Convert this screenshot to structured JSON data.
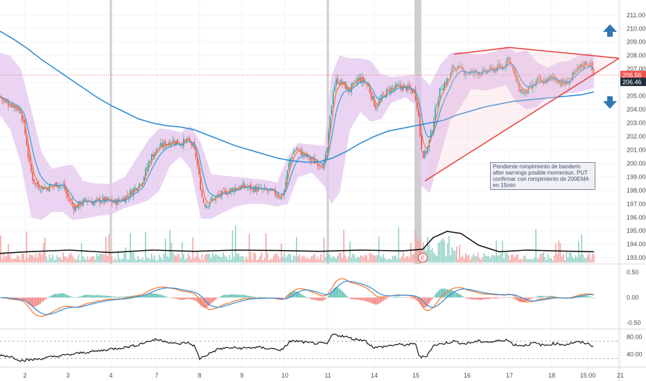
{
  "chart_data": [
    {
      "type": "candlestick",
      "panel": "price",
      "y_ticks": [
        "211.00",
        "210.00",
        "209.00",
        "208.00",
        "207.00",
        "206.00",
        "205.00",
        "204.00",
        "203.00",
        "202.00",
        "201.00",
        "200.00",
        "199.00",
        "198.00",
        "197.00",
        "196.00",
        "195.00",
        "194.00",
        "193.00"
      ],
      "ylim": [
        192.7,
        211.4
      ],
      "x_ticks": [
        "2",
        "3",
        "4",
        "7",
        "8",
        "9",
        "10",
        "11",
        "14",
        "15",
        "16",
        "17",
        "18",
        "15:00",
        "21"
      ],
      "current_price": "206.56",
      "current_price_2": "206.46",
      "close_path": [
        [
          0,
          205.0
        ],
        [
          5,
          204.6
        ],
        [
          10,
          204.5
        ],
        [
          20,
          204.3
        ],
        [
          30,
          203.9
        ],
        [
          37,
          202.0
        ],
        [
          42,
          200.0
        ],
        [
          48,
          198.7
        ],
        [
          55,
          198.3
        ],
        [
          65,
          198.2
        ],
        [
          75,
          198.3
        ],
        [
          85,
          198.5
        ],
        [
          92,
          198.3
        ],
        [
          97,
          197.5
        ],
        [
          103,
          197.0
        ],
        [
          108,
          196.7
        ],
        [
          115,
          197.0
        ],
        [
          125,
          197.3
        ],
        [
          135,
          197.1
        ],
        [
          145,
          197.3
        ],
        [
          155,
          197.2
        ],
        [
          165,
          197.1
        ],
        [
          175,
          197.3
        ],
        [
          183,
          197.6
        ],
        [
          190,
          197.9
        ],
        [
          197,
          198.3
        ],
        [
          205,
          198.7
        ],
        [
          210,
          199.4
        ],
        [
          216,
          200.3
        ],
        [
          222,
          200.8
        ],
        [
          230,
          201.2
        ],
        [
          240,
          201.5
        ],
        [
          250,
          201.7
        ],
        [
          258,
          201.5
        ],
        [
          265,
          201.6
        ],
        [
          270,
          201.7
        ],
        [
          277,
          201.4
        ],
        [
          283,
          200.5
        ],
        [
          287,
          199.0
        ],
        [
          292,
          197.3
        ],
        [
          297,
          196.9
        ],
        [
          303,
          197.2
        ],
        [
          312,
          197.5
        ],
        [
          322,
          197.8
        ],
        [
          332,
          198.0
        ],
        [
          340,
          198.2
        ],
        [
          350,
          198.3
        ],
        [
          360,
          198.2
        ],
        [
          370,
          198.1
        ],
        [
          380,
          198.0
        ],
        [
          390,
          197.9
        ],
        [
          400,
          197.7
        ],
        [
          406,
          197.5
        ],
        [
          410,
          198.0
        ],
        [
          415,
          199.5
        ],
        [
          420,
          200.6
        ],
        [
          427,
          201.1
        ],
        [
          432,
          200.9
        ],
        [
          440,
          200.6
        ],
        [
          450,
          200.2
        ],
        [
          460,
          200.0
        ],
        [
          468,
          199.9
        ],
        [
          473,
          201.5
        ],
        [
          477,
          203.8
        ],
        [
          481,
          205.6
        ],
        [
          486,
          206.2
        ],
        [
          491,
          206.0
        ],
        [
          497,
          205.8
        ],
        [
          503,
          205.4
        ],
        [
          510,
          205.8
        ],
        [
          517,
          206.3
        ],
        [
          525,
          206.1
        ],
        [
          532,
          205.6
        ],
        [
          537,
          204.8
        ],
        [
          542,
          204.2
        ],
        [
          548,
          204.6
        ],
        [
          555,
          205.2
        ],
        [
          562,
          205.5
        ],
        [
          570,
          205.6
        ],
        [
          578,
          205.7
        ],
        [
          586,
          205.6
        ],
        [
          593,
          205.4
        ],
        [
          598,
          205.3
        ],
        [
          603,
          204.0
        ],
        [
          607,
          201.5
        ],
        [
          611,
          200.5
        ],
        [
          616,
          201.0
        ],
        [
          621,
          202.0
        ],
        [
          627,
          203.6
        ],
        [
          632,
          204.9
        ],
        [
          637,
          205.7
        ],
        [
          643,
          206.0
        ],
        [
          648,
          206.3
        ],
        [
          653,
          207.1
        ],
        [
          658,
          207.2
        ],
        [
          665,
          206.9
        ],
        [
          672,
          206.8
        ],
        [
          680,
          206.7
        ],
        [
          688,
          206.8
        ],
        [
          696,
          206.7
        ],
        [
          705,
          206.9
        ],
        [
          712,
          207.0
        ],
        [
          720,
          207.1
        ],
        [
          727,
          207.2
        ],
        [
          732,
          207.9
        ],
        [
          737,
          207.5
        ],
        [
          742,
          206.5
        ],
        [
          748,
          205.6
        ],
        [
          755,
          205.2
        ],
        [
          762,
          205.4
        ],
        [
          770,
          205.8
        ],
        [
          776,
          206.2
        ],
        [
          782,
          206.0
        ],
        [
          790,
          206.2
        ],
        [
          796,
          206.4
        ],
        [
          802,
          206.3
        ],
        [
          808,
          206.0
        ],
        [
          815,
          205.9
        ],
        [
          822,
          206.2
        ],
        [
          828,
          206.6
        ],
        [
          834,
          207.0
        ],
        [
          840,
          207.3
        ],
        [
          846,
          207.5
        ],
        [
          852,
          207.3
        ],
        [
          857,
          206.56
        ]
      ],
      "ema200": [
        [
          0,
          209.8
        ],
        [
          20,
          209.2
        ],
        [
          40,
          208.5
        ],
        [
          60,
          207.7
        ],
        [
          80,
          207.0
        ],
        [
          100,
          206.3
        ],
        [
          120,
          205.6
        ],
        [
          140,
          204.9
        ],
        [
          160,
          204.3
        ],
        [
          180,
          203.8
        ],
        [
          200,
          203.3
        ],
        [
          220,
          203.0
        ],
        [
          240,
          202.8
        ],
        [
          260,
          202.7
        ],
        [
          280,
          202.5
        ],
        [
          300,
          202.1
        ],
        [
          320,
          201.7
        ],
        [
          340,
          201.3
        ],
        [
          360,
          201.0
        ],
        [
          380,
          200.7
        ],
        [
          400,
          200.4
        ],
        [
          420,
          200.2
        ],
        [
          440,
          200.1
        ],
        [
          460,
          200.1
        ],
        [
          480,
          200.4
        ],
        [
          500,
          200.9
        ],
        [
          520,
          201.5
        ],
        [
          540,
          202.0
        ],
        [
          560,
          202.4
        ],
        [
          580,
          202.6
        ],
        [
          600,
          202.8
        ],
        [
          620,
          203.0
        ],
        [
          640,
          203.2
        ],
        [
          660,
          203.6
        ],
        [
          680,
          203.9
        ],
        [
          700,
          204.2
        ],
        [
          720,
          204.4
        ],
        [
          740,
          204.6
        ],
        [
          760,
          204.7
        ],
        [
          780,
          204.8
        ],
        [
          800,
          204.9
        ],
        [
          820,
          205.0
        ],
        [
          840,
          205.1
        ],
        [
          857,
          205.3
        ]
      ],
      "bands": [
        [
          0,
          208.2,
          203.6
        ],
        [
          15,
          208.0,
          202.5
        ],
        [
          30,
          207.0,
          200.0
        ],
        [
          45,
          204.0,
          196.0
        ],
        [
          60,
          200.8,
          195.8
        ],
        [
          75,
          199.6,
          196.4
        ],
        [
          90,
          199.8,
          196.4
        ],
        [
          105,
          199.9,
          195.8
        ],
        [
          120,
          198.7,
          195.9
        ],
        [
          140,
          198.5,
          196.1
        ],
        [
          160,
          198.5,
          196.2
        ],
        [
          180,
          199.0,
          196.7
        ],
        [
          200,
          200.6,
          197.0
        ],
        [
          215,
          201.8,
          197.3
        ],
        [
          230,
          202.6,
          198.0
        ],
        [
          245,
          202.5,
          199.8
        ],
        [
          260,
          202.3,
          200.5
        ],
        [
          275,
          202.8,
          199.6
        ],
        [
          290,
          201.5,
          195.9
        ],
        [
          305,
          199.2,
          195.9
        ],
        [
          320,
          199.1,
          196.3
        ],
        [
          340,
          199.0,
          196.8
        ],
        [
          360,
          198.9,
          197.0
        ],
        [
          380,
          198.8,
          197.0
        ],
        [
          400,
          198.6,
          196.8
        ],
        [
          415,
          200.5,
          197.0
        ],
        [
          430,
          201.5,
          199.0
        ],
        [
          450,
          201.4,
          199.3
        ],
        [
          468,
          201.3,
          198.3
        ],
        [
          478,
          206.5,
          197.0
        ],
        [
          490,
          208.0,
          197.8
        ],
        [
          505,
          207.8,
          202.5
        ],
        [
          520,
          207.8,
          203.8
        ],
        [
          535,
          207.6,
          203.1
        ],
        [
          550,
          206.6,
          203.3
        ],
        [
          565,
          206.4,
          204.5
        ],
        [
          585,
          206.5,
          204.9
        ],
        [
          598,
          206.6,
          204.4
        ],
        [
          607,
          206.5,
          198.4
        ],
        [
          620,
          205.8,
          197.8
        ],
        [
          635,
          207.3,
          200.5
        ],
        [
          650,
          208.2,
          203.2
        ],
        [
          665,
          208.3,
          204.2
        ],
        [
          680,
          208.1,
          205.5
        ],
        [
          700,
          208.1,
          205.4
        ],
        [
          715,
          208.3,
          205.6
        ],
        [
          730,
          208.7,
          205.8
        ],
        [
          745,
          208.2,
          204.5
        ],
        [
          760,
          208.4,
          204.0
        ],
        [
          775,
          207.5,
          204.2
        ],
        [
          790,
          207.1,
          204.9
        ],
        [
          805,
          207.5,
          205.0
        ],
        [
          820,
          207.6,
          205.2
        ],
        [
          835,
          208.0,
          205.3
        ],
        [
          850,
          208.2,
          205.5
        ],
        [
          857,
          208.0,
          205.6
        ]
      ],
      "triangle": {
        "apex": [
          893,
          207.8
        ],
        "upper_start": [
          655,
          208.1
        ],
        "upper_peak": [
          735,
          208.6
        ],
        "lower_start": [
          613,
          198.7
        ]
      },
      "earnings_marker": "E",
      "annotation": "Pendiente rompimiento de banderin after earnings posible momentun. PUT confirmar con rompimiento de 200EMA en 15min",
      "highlight_columns": [
        160,
        473
      ],
      "shaded_column": 603
    },
    {
      "type": "bar",
      "panel": "volume",
      "series": "volume",
      "ma": [
        [
          0,
          0.22
        ],
        [
          40,
          0.26
        ],
        [
          100,
          0.3
        ],
        [
          160,
          0.24
        ],
        [
          220,
          0.3
        ],
        [
          280,
          0.27
        ],
        [
          340,
          0.3
        ],
        [
          400,
          0.29
        ],
        [
          460,
          0.27
        ],
        [
          520,
          0.3
        ],
        [
          580,
          0.28
        ],
        [
          610,
          0.32
        ],
        [
          625,
          0.6
        ],
        [
          645,
          0.75
        ],
        [
          665,
          0.7
        ],
        [
          690,
          0.42
        ],
        [
          720,
          0.26
        ],
        [
          760,
          0.3
        ],
        [
          800,
          0.28
        ],
        [
          857,
          0.26
        ]
      ]
    },
    {
      "type": "line",
      "panel": "macd",
      "y_ticks": [
        "0.50",
        "0.00",
        "-0.50"
      ],
      "ylim": [
        -0.58,
        0.58
      ]
    },
    {
      "type": "line",
      "panel": "rsi",
      "y_ticks": [
        "80.00",
        "40.00"
      ],
      "ylim": [
        15,
        95
      ],
      "levels": [
        70,
        30
      ],
      "rsi": [
        [
          0,
          38
        ],
        [
          15,
          35
        ],
        [
          30,
          26
        ],
        [
          45,
          27
        ],
        [
          60,
          30
        ],
        [
          75,
          34
        ],
        [
          90,
          37
        ],
        [
          105,
          40
        ],
        [
          120,
          44
        ],
        [
          140,
          47
        ],
        [
          160,
          52
        ],
        [
          180,
          56
        ],
        [
          195,
          60
        ],
        [
          210,
          68
        ],
        [
          225,
          74
        ],
        [
          240,
          70
        ],
        [
          255,
          63
        ],
        [
          270,
          67
        ],
        [
          280,
          60
        ],
        [
          288,
          30
        ],
        [
          300,
          40
        ],
        [
          315,
          52
        ],
        [
          330,
          55
        ],
        [
          350,
          54
        ],
        [
          370,
          56
        ],
        [
          390,
          53
        ],
        [
          408,
          50
        ],
        [
          418,
          70
        ],
        [
          430,
          70
        ],
        [
          445,
          66
        ],
        [
          460,
          65
        ],
        [
          472,
          64
        ],
        [
          480,
          86
        ],
        [
          495,
          82
        ],
        [
          510,
          75
        ],
        [
          525,
          73
        ],
        [
          540,
          55
        ],
        [
          555,
          58
        ],
        [
          570,
          62
        ],
        [
          590,
          62
        ],
        [
          600,
          64
        ],
        [
          605,
          33
        ],
        [
          615,
          35
        ],
        [
          625,
          60
        ],
        [
          640,
          65
        ],
        [
          655,
          70
        ],
        [
          670,
          64
        ],
        [
          690,
          70
        ],
        [
          710,
          68
        ],
        [
          730,
          74
        ],
        [
          742,
          62
        ],
        [
          755,
          60
        ],
        [
          770,
          66
        ],
        [
          785,
          60
        ],
        [
          800,
          65
        ],
        [
          815,
          62
        ],
        [
          830,
          68
        ],
        [
          845,
          66
        ],
        [
          857,
          58
        ]
      ]
    }
  ]
}
